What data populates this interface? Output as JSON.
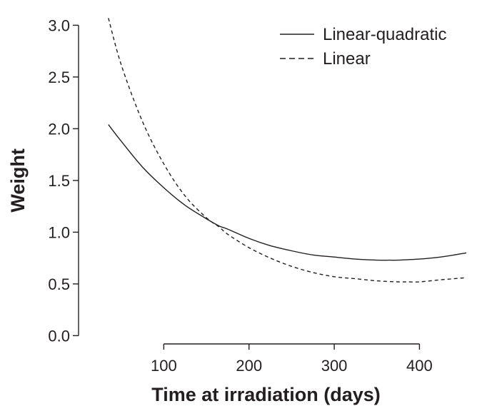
{
  "chart_data": {
    "type": "line",
    "title": "",
    "xlabel": "Time at irradiation (days)",
    "ylabel": "Weight",
    "xlim": [
      0,
      465
    ],
    "ylim": [
      -0.08,
      3.12
    ],
    "xticks": [
      100,
      200,
      300,
      400
    ],
    "yticks": [
      0.0,
      0.5,
      1.0,
      1.5,
      2.0,
      2.5,
      3.0
    ],
    "ytick_labels": [
      "0.0",
      "0.5",
      "1.0",
      "1.5",
      "2.0",
      "2.5",
      "3.0"
    ],
    "grid": false,
    "legend": "top-right",
    "series": [
      {
        "name": "Linear-quadratic",
        "style": "solid",
        "color": "#231f20",
        "x": [
          35,
          50,
          75,
          100,
          125,
          150,
          165,
          175,
          200,
          225,
          250,
          275,
          300,
          325,
          350,
          365,
          375,
          400,
          425,
          455
        ],
        "y": [
          2.04,
          1.88,
          1.63,
          1.43,
          1.26,
          1.13,
          1.06,
          1.03,
          0.94,
          0.87,
          0.82,
          0.78,
          0.76,
          0.74,
          0.73,
          0.73,
          0.73,
          0.74,
          0.76,
          0.8
        ]
      },
      {
        "name": "Linear",
        "style": "dashed",
        "color": "#231f20",
        "x": [
          35,
          50,
          75,
          100,
          125,
          150,
          165,
          175,
          200,
          225,
          250,
          275,
          300,
          325,
          350,
          375,
          385,
          400,
          425,
          455
        ],
        "y": [
          3.07,
          2.62,
          2.07,
          1.66,
          1.35,
          1.14,
          1.05,
          0.98,
          0.85,
          0.75,
          0.67,
          0.61,
          0.57,
          0.55,
          0.53,
          0.52,
          0.52,
          0.52,
          0.54,
          0.56
        ]
      }
    ]
  }
}
